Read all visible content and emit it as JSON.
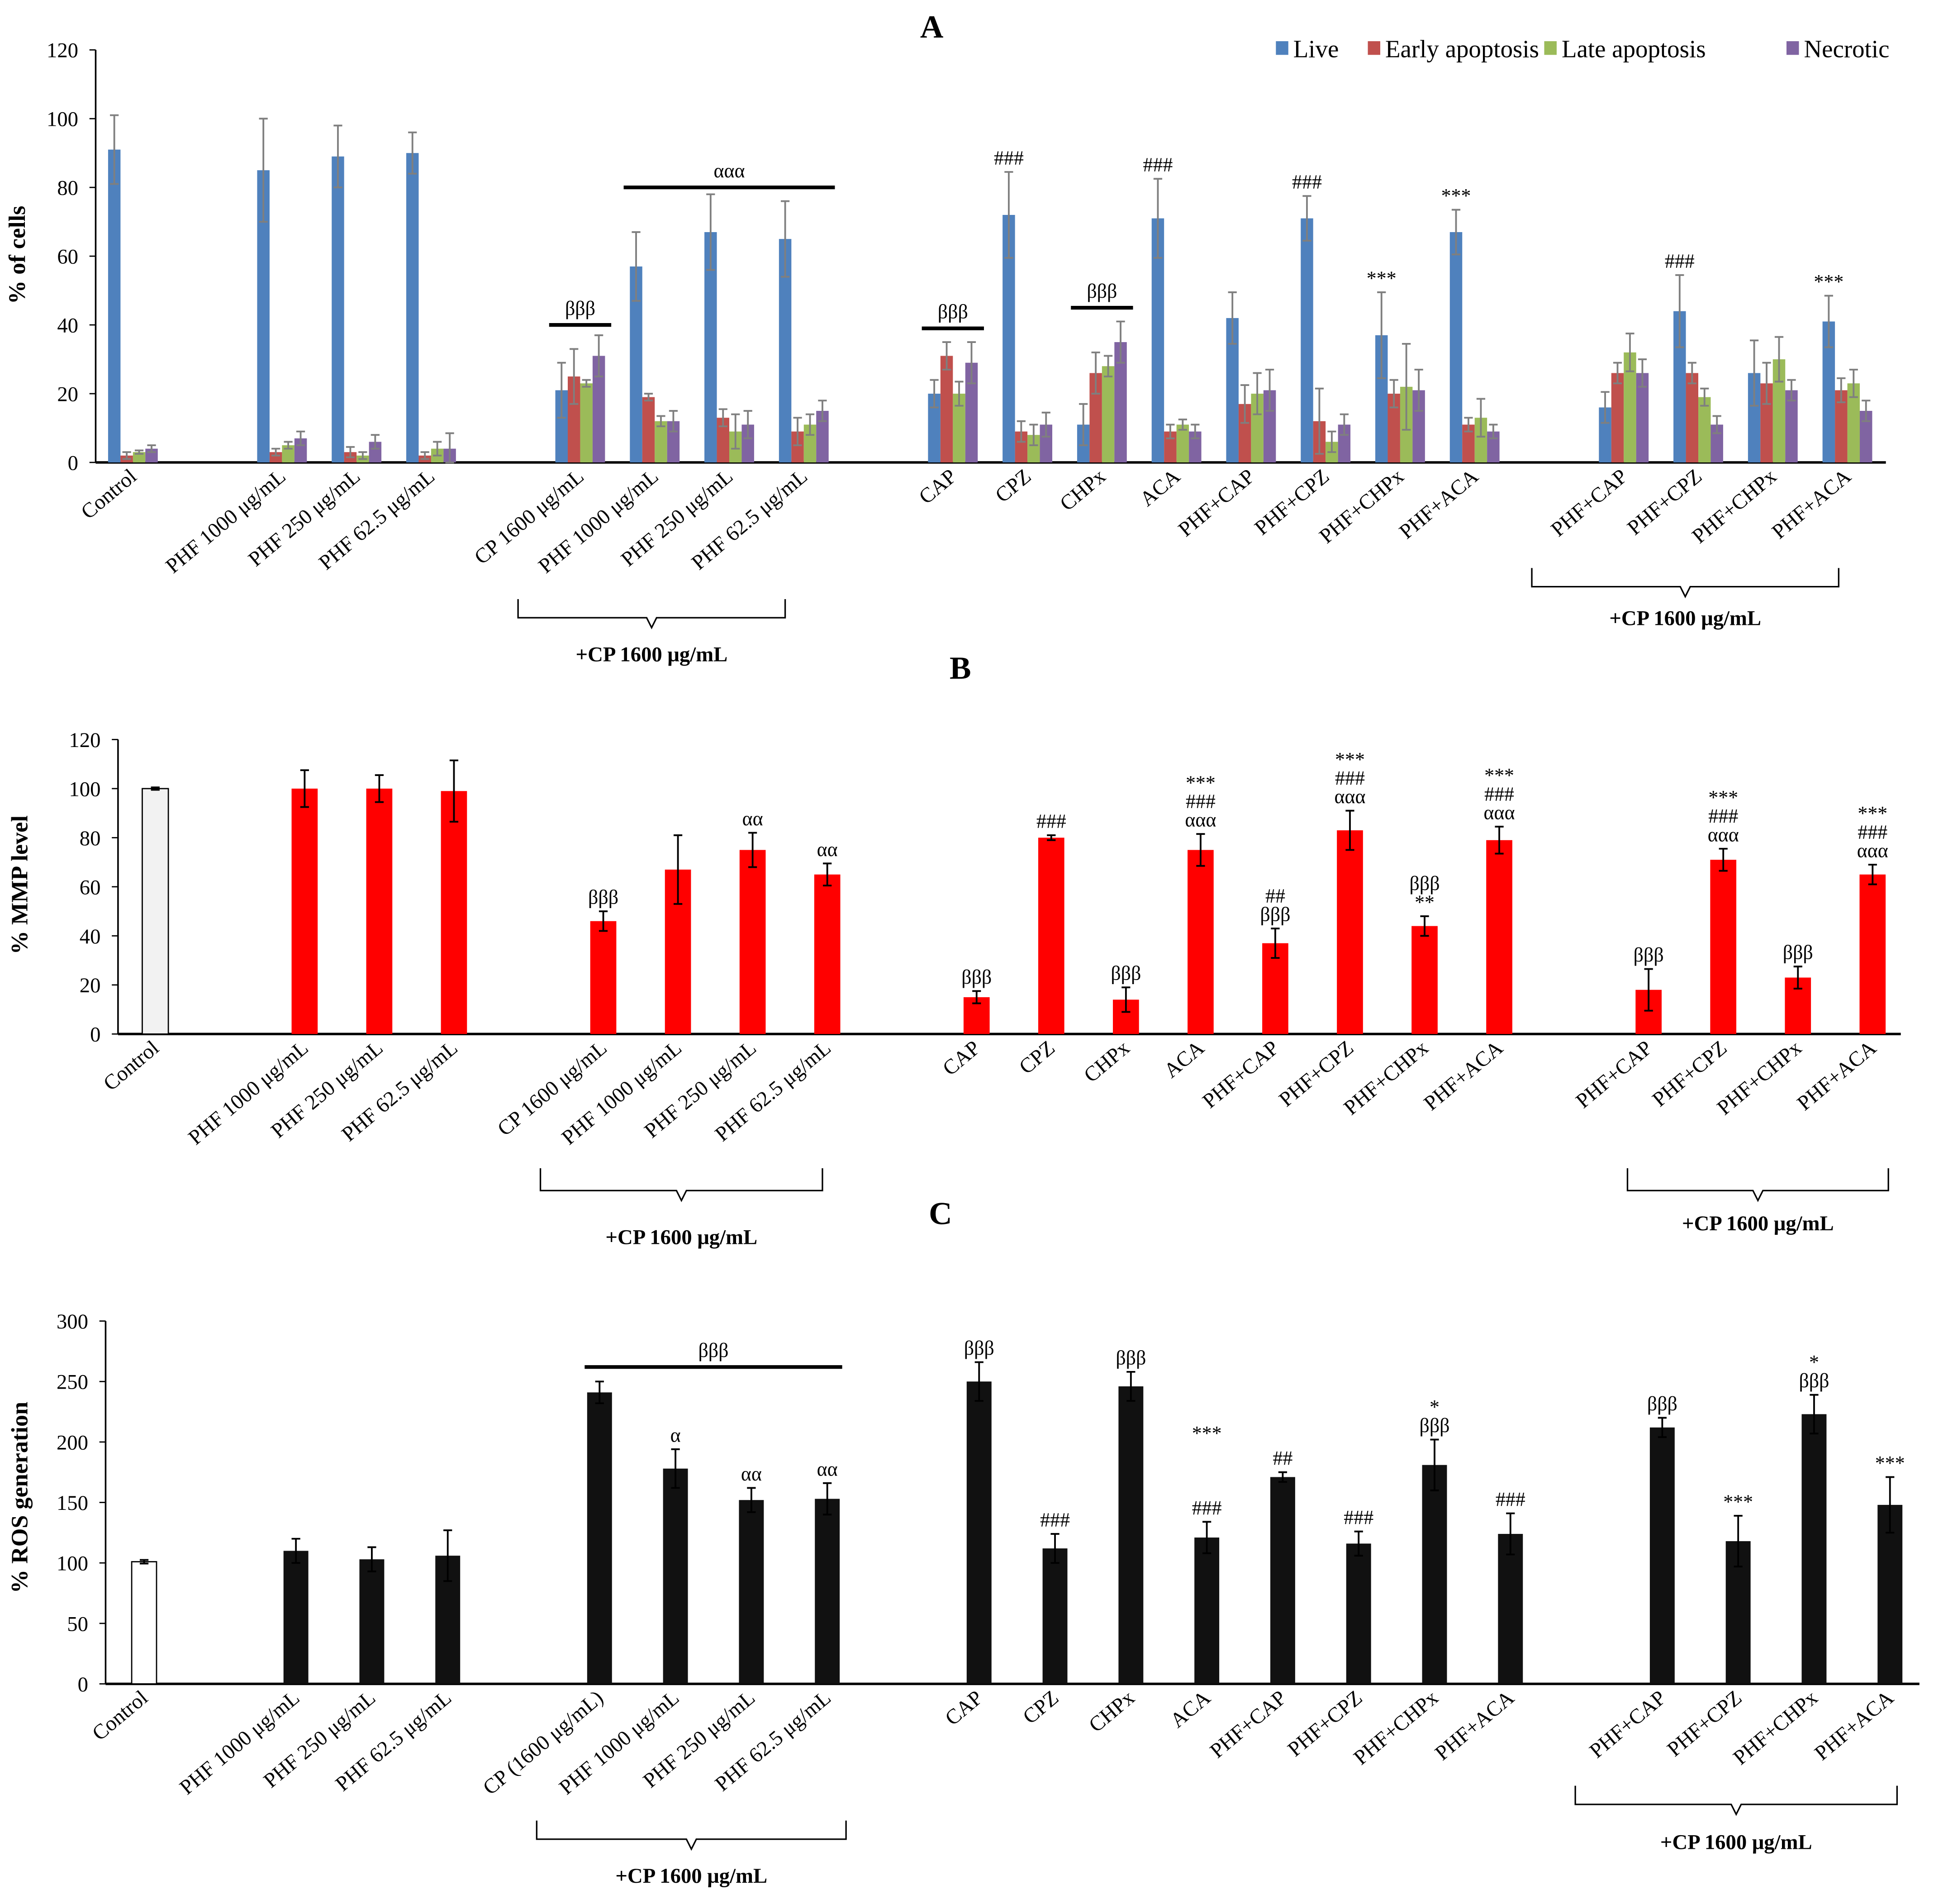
{
  "chart_data": [
    {
      "panel": "A",
      "type": "bar",
      "title": "A",
      "ylabel": "% of cells",
      "xlabel": "",
      "ylim": [
        0,
        120
      ],
      "yticks": [
        0,
        20,
        40,
        60,
        80,
        100,
        120
      ],
      "grid": false,
      "legend_position": "top-right",
      "categories": [
        "Control",
        "PHF 1000 μg/mL",
        "PHF 250 μg/mL",
        "PHF 62.5 μg/mL",
        "CP 1600 μg/mL",
        "PHF 1000 μg/mL",
        "PHF 250 μg/mL",
        "PHF 62.5 μg/mL",
        "CAP",
        "CPZ",
        "CHPx",
        "ACA",
        "PHF+CAP",
        "PHF+CPZ",
        "PHF+CHPx",
        "PHF+ACA",
        "PHF+CAP",
        "PHF+CPZ",
        "PHF+CHPx",
        "PHF+ACA"
      ],
      "series": [
        {
          "name": "Live",
          "color": "#4f81bd",
          "values": [
            91,
            85,
            89,
            90,
            21,
            57,
            67,
            65,
            20,
            72,
            11,
            71,
            42,
            71,
            37,
            67,
            16,
            44,
            26,
            41
          ],
          "errors": [
            10,
            15,
            9,
            6,
            8,
            10,
            11,
            11,
            4,
            12.5,
            6,
            11.5,
            7.5,
            6.5,
            12.5,
            6.5,
            4.5,
            10.5,
            9.5,
            7.5
          ]
        },
        {
          "name": "Early apoptosis",
          "color": "#c0504d",
          "values": [
            2,
            3,
            3,
            2,
            25,
            19,
            13,
            9,
            31,
            9,
            26,
            9,
            17,
            12,
            20,
            11,
            26,
            26,
            23,
            21
          ],
          "errors": [
            1,
            1,
            1.5,
            1,
            8,
            1,
            2.5,
            4,
            4,
            3,
            6,
            2,
            5.5,
            9.5,
            4,
            2,
            3,
            3,
            6,
            3.5
          ]
        },
        {
          "name": "Late apoptosis",
          "color": "#9bbb59",
          "values": [
            3,
            5,
            2,
            4,
            23,
            12,
            9,
            11,
            20,
            8,
            28,
            11,
            20,
            6,
            22,
            13,
            32,
            19,
            30,
            23
          ],
          "errors": [
            0.5,
            1,
            1,
            2,
            1,
            1.5,
            5,
            3,
            3.5,
            3,
            3,
            1.5,
            6,
            3,
            12.5,
            5.5,
            5.5,
            2.5,
            6.5,
            4
          ]
        },
        {
          "name": "Necrotic",
          "color": "#8064a2",
          "values": [
            4,
            7,
            6,
            4,
            31,
            12,
            11,
            15,
            29,
            11,
            35,
            9,
            21,
            11,
            21,
            9,
            26,
            11,
            21,
            15
          ],
          "errors": [
            1,
            2,
            2,
            4.5,
            6,
            3,
            4,
            3,
            6,
            3.5,
            6,
            2,
            6,
            3,
            6,
            2,
            4,
            2.5,
            3,
            3
          ]
        }
      ],
      "annotations": [
        {
          "category": 9,
          "text": [
            "###"
          ]
        },
        {
          "category": 11,
          "text": [
            "###"
          ]
        },
        {
          "category": 13,
          "text": [
            "###"
          ]
        },
        {
          "category": 14,
          "text": [
            "***"
          ]
        },
        {
          "category": 15,
          "text": [
            "***"
          ]
        },
        {
          "category": 17,
          "text": [
            "###"
          ]
        },
        {
          "category": 19,
          "text": [
            "***"
          ]
        }
      ],
      "brackets": [
        {
          "from": 4,
          "to": 4,
          "value": 40,
          "label": "βββ"
        },
        {
          "from": 5,
          "to": 7,
          "value": 80,
          "label": "ααα"
        },
        {
          "from": 8,
          "to": 8,
          "value": 39,
          "label": "βββ"
        },
        {
          "from": 10,
          "to": 10,
          "value": 45,
          "label": "βββ"
        }
      ],
      "groups": [
        {
          "from": 4,
          "to": 7,
          "label": "+CP 1600 μg/mL"
        },
        {
          "from": 16,
          "to": 19,
          "label": "+CP 1600 μg/mL"
        }
      ]
    },
    {
      "panel": "B",
      "type": "bar",
      "title": "B",
      "ylabel": "%  MMP level",
      "xlabel": "",
      "ylim": [
        0,
        120
      ],
      "yticks": [
        0,
        20,
        40,
        60,
        80,
        100,
        120
      ],
      "grid": false,
      "categories": [
        "Control",
        "PHF 1000 μg/mL",
        "PHF 250 μg/mL",
        "PHF 62.5 μg/mL",
        "CP 1600 μg/mL",
        "PHF 1000 μg/mL",
        "PHF 250 μg/mL",
        "PHF 62.5 μg/mL",
        "CAP",
        "CPZ",
        "CHPx",
        "ACA",
        "PHF+CAP",
        "PHF+CPZ",
        "PHF+CHPx",
        "PHF+ACA",
        "PHF+CAP",
        "PHF+CPZ",
        "PHF+CHPx",
        "PHF+ACA"
      ],
      "series": [
        {
          "name": "MMP level",
          "color": "#ff0000",
          "control_color": "#f2f2f2",
          "values": [
            100,
            100,
            100,
            99,
            46,
            67,
            75,
            65,
            15,
            80,
            14,
            75,
            37,
            83,
            44,
            79,
            18,
            71,
            23,
            65
          ],
          "errors": [
            0.5,
            7.5,
            5.5,
            12.5,
            4,
            14,
            7,
            4.5,
            2.5,
            1,
            5,
            6.5,
            6,
            8,
            4,
            5.5,
            8.5,
            4.5,
            4.5,
            4
          ]
        }
      ],
      "annotations": [
        {
          "category": 4,
          "text": [
            "βββ"
          ]
        },
        {
          "category": 6,
          "text": [
            "αα"
          ]
        },
        {
          "category": 7,
          "text": [
            "αα"
          ]
        },
        {
          "category": 8,
          "text": [
            "βββ"
          ]
        },
        {
          "category": 9,
          "text": [
            "###"
          ]
        },
        {
          "category": 10,
          "text": [
            "βββ"
          ]
        },
        {
          "category": 11,
          "text": [
            "***",
            "###",
            "ααα"
          ]
        },
        {
          "category": 12,
          "text": [
            "##",
            "βββ"
          ]
        },
        {
          "category": 13,
          "text": [
            "***",
            "###",
            "ααα"
          ]
        },
        {
          "category": 14,
          "text": [
            "βββ",
            "**"
          ]
        },
        {
          "category": 15,
          "text": [
            "***",
            "###",
            "ααα"
          ]
        },
        {
          "category": 16,
          "text": [
            "βββ"
          ]
        },
        {
          "category": 17,
          "text": [
            "***",
            "###",
            "ααα"
          ]
        },
        {
          "category": 18,
          "text": [
            "βββ"
          ]
        },
        {
          "category": 19,
          "text": [
            "***",
            "###",
            "ααα"
          ]
        }
      ],
      "brackets": [],
      "groups": [
        {
          "from": 4,
          "to": 7,
          "label": "+CP 1600 μg/mL"
        },
        {
          "from": 16,
          "to": 19,
          "label": "+CP 1600 μg/mL"
        }
      ]
    },
    {
      "panel": "C",
      "type": "bar",
      "title": "C",
      "ylabel": "% ROS generation",
      "xlabel": "",
      "ylim": [
        0,
        300
      ],
      "yticks": [
        0,
        50,
        100,
        150,
        200,
        250,
        300
      ],
      "grid": false,
      "categories": [
        "Control",
        "PHF 1000 μg/mL",
        "PHF 250 μg/mL",
        "PHF 62.5 μg/mL",
        "CP (1600 μg/mL)",
        "PHF 1000 μg/mL",
        "PHF 250 μg/mL",
        "PHF 62.5 μg/mL",
        "CAP",
        "CPZ",
        "CHPx",
        "ACA",
        "PHF+CAP",
        "PHF+CPZ",
        "PHF+CHPx",
        "PHF+ACA",
        "PHF+CAP",
        "PHF+CPZ",
        "PHF+CHPx",
        "PHF+ACA"
      ],
      "series": [
        {
          "name": "ROS generation",
          "color": "#111111",
          "control_color": "#ffffff",
          "values": [
            101,
            110,
            103,
            106,
            241,
            178,
            152,
            153,
            250,
            112,
            246,
            121,
            171,
            116,
            181,
            124,
            212,
            118,
            223,
            148
          ],
          "errors": [
            1.5,
            10,
            10,
            21,
            9,
            16,
            10,
            13,
            16,
            12,
            12,
            13,
            4,
            10,
            21,
            17,
            8,
            21,
            16,
            23
          ]
        }
      ],
      "annotations": [
        {
          "category": 5,
          "text": [
            "α"
          ]
        },
        {
          "category": 6,
          "text": [
            "αα"
          ]
        },
        {
          "category": 7,
          "text": [
            "αα"
          ]
        },
        {
          "category": 8,
          "text": [
            "βββ"
          ]
        },
        {
          "category": 9,
          "text": [
            "###"
          ]
        },
        {
          "category": 10,
          "text": [
            "βββ"
          ]
        },
        {
          "category": 11,
          "text": [
            "***",
            "",
            "",
            "",
            "###"
          ]
        },
        {
          "category": 12,
          "text": [
            "##"
          ]
        },
        {
          "category": 13,
          "text": [
            "###"
          ]
        },
        {
          "category": 14,
          "text": [
            "*",
            "βββ"
          ]
        },
        {
          "category": 15,
          "text": [
            "###"
          ]
        },
        {
          "category": 16,
          "text": [
            "βββ"
          ]
        },
        {
          "category": 17,
          "text": [
            "***"
          ]
        },
        {
          "category": 18,
          "text": [
            "*",
            "βββ"
          ]
        },
        {
          "category": 19,
          "text": [
            "***"
          ]
        }
      ],
      "brackets": [
        {
          "from": 4,
          "to": 7,
          "value": 262,
          "label": "βββ"
        }
      ],
      "groups": [
        {
          "from": 4,
          "to": 7,
          "label": "+CP 1600 μg/mL"
        },
        {
          "from": 16,
          "to": 19,
          "label": "+CP 1600 μg/mL"
        }
      ]
    }
  ]
}
